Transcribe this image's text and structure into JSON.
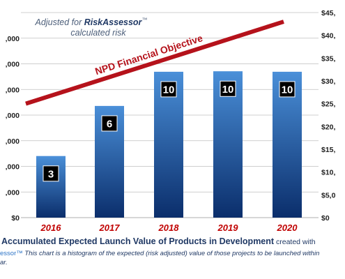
{
  "chart_data": {
    "type": "bar",
    "categories": [
      "2016",
      "2017",
      "2018",
      "2019",
      "2020"
    ],
    "values": [
      13500,
      24500,
      32000,
      32100,
      32000
    ],
    "data_labels": [
      "3",
      "6",
      "10",
      "10",
      "10"
    ],
    "left_axis": {
      "ylim": [
        0,
        45000
      ],
      "tick_labels": [
        "$0",
        ",000",
        ",000",
        ",000",
        ",000",
        ",000",
        ",000",
        ",000",
        ""
      ]
    },
    "right_axis": {
      "ylim": [
        0,
        45000
      ],
      "tick_labels": [
        "$0",
        "$5,0",
        "$10,",
        "$15,",
        "$20,",
        "$25,",
        "$30,",
        "$35,",
        "$40,",
        "$45,"
      ]
    },
    "objective_line": {
      "label": "NPD Financial Objective",
      "start": {
        "x": "2016",
        "y": 25000
      },
      "end": {
        "x": "2020",
        "y": 43000
      }
    },
    "annotation": {
      "line1_prefix": "Adjusted for ",
      "line1_brand": "RiskAssessor",
      "line1_tm": "™",
      "line2": "calculated risk"
    },
    "colors": {
      "bar_top": "#4a8fd8",
      "bar_bottom": "#0b2e6b",
      "objective": "#b5121b",
      "x_labels": "#c00000",
      "gridline": "#bfbfbf"
    },
    "grid": true
  },
  "caption": {
    "title": "Accumulated Expected Launch Value of Products in Development",
    "title_suffix": " created with",
    "line2_brand": "essor™",
    "line2_text": "  This chart is a histogram of the expected (risk adjusted) value of those projects to be launched within",
    "line3_text": "ar."
  }
}
